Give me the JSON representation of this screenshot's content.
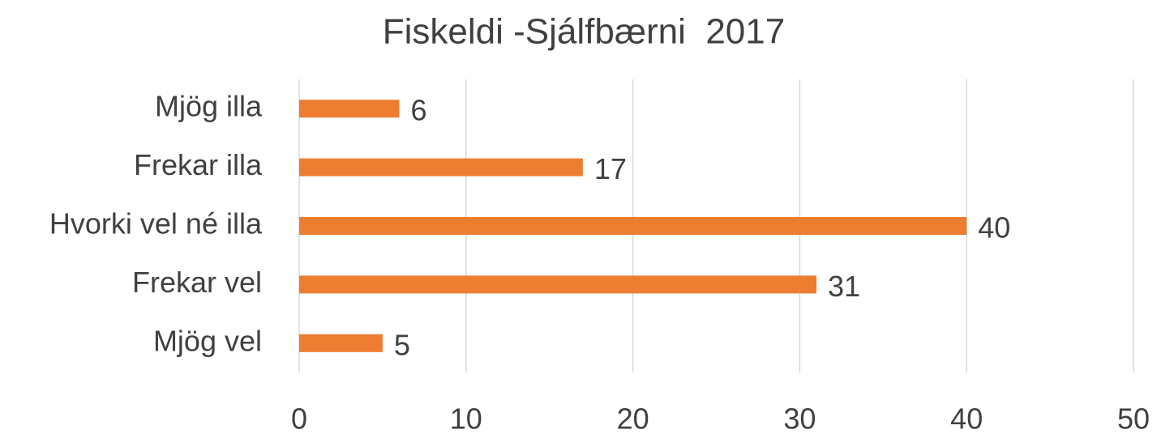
{
  "chart_data": {
    "type": "bar",
    "orientation": "horizontal",
    "title": "Fiskeldi -Sjálfbærni  2017",
    "categories": [
      "Mjög illa",
      "Frekar illa",
      "Hvorki vel né illa",
      "Frekar vel",
      "Mjög vel"
    ],
    "values": [
      6,
      17,
      40,
      31,
      5
    ],
    "color": "#ed7d31",
    "xlim": [
      0,
      50
    ],
    "xticks": [
      0,
      10,
      20,
      30,
      40,
      50
    ],
    "grid": true
  }
}
